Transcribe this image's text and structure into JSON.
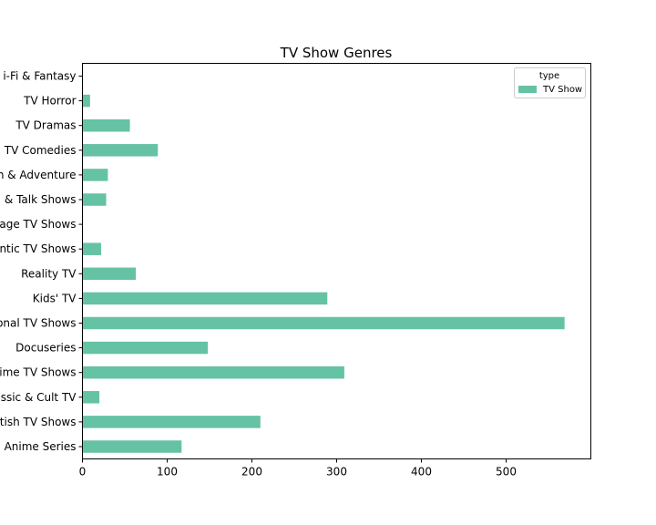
{
  "chart_data": {
    "type": "bar",
    "orientation": "horizontal",
    "title": "TV Show Genres",
    "categories": [
      "Anime Series",
      "British TV Shows",
      "Classic & Cult TV",
      "Crime TV Shows",
      "Docuseries",
      "International TV Shows",
      "Kids' TV",
      "Reality TV",
      "Romantic TV Shows",
      "Science & Nature TV / Language TV Shows",
      "Stand-Up Comedy & Talk Shows",
      "TV Action & Adventure",
      "TV Comedies",
      "TV Dramas",
      "TV Horror",
      "TV Sci-Fi & Fantasy"
    ],
    "category_labels_visible": [
      "Anime Series",
      "tish TV Shows",
      "ssic & Cult TV",
      "ime TV Shows",
      "Docuseries",
      "onal TV Shows",
      "Kids' TV",
      "Reality TV",
      "ntic TV Shows",
      "age TV Shows",
      "& Talk Shows",
      "n & Adventure",
      "TV Comedies",
      "TV Dramas",
      "TV Horror",
      "i-Fi & Fantasy"
    ],
    "series": [
      {
        "name": "TV Show",
        "color": "#66c2a5",
        "values": [
          117,
          210,
          20,
          309,
          148,
          569,
          289,
          63,
          22,
          0,
          28,
          30,
          89,
          56,
          9,
          0
        ]
      }
    ],
    "xlim": [
      0,
      600
    ],
    "xticks": [
      0,
      100,
      200,
      300,
      400,
      500
    ],
    "xlabel": "",
    "ylabel": "",
    "legend": {
      "title": "type",
      "placement": "top-right"
    },
    "grid": false
  }
}
